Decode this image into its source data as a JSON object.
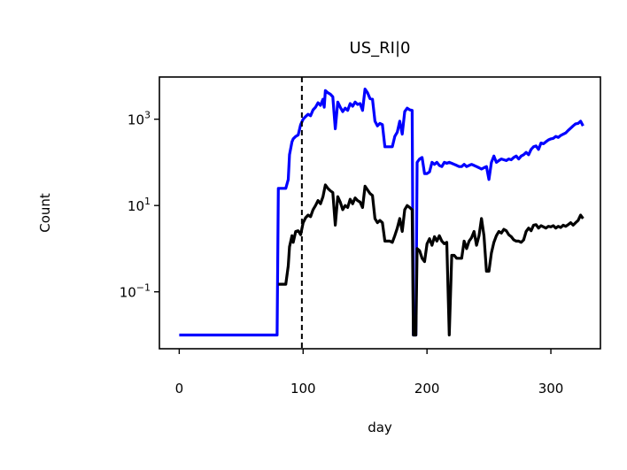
{
  "chart_data": {
    "type": "line",
    "title": "US_RI|0",
    "xlabel": "day",
    "ylabel": "Count",
    "xlim": [
      -16,
      340
    ],
    "ylim": [
      0.0048,
      9500
    ],
    "yscale": "log",
    "grid": false,
    "x_ticks": [
      {
        "value": 0,
        "label": "0"
      },
      {
        "value": 100,
        "label": "100"
      },
      {
        "value": 200,
        "label": "200"
      },
      {
        "value": 300,
        "label": "300"
      }
    ],
    "y_ticks": [
      {
        "value": 0.1,
        "base": "10",
        "exp": "−1"
      },
      {
        "value": 10,
        "base": "10",
        "exp": "1"
      },
      {
        "value": 1000,
        "base": "10",
        "exp": "3"
      }
    ],
    "vline": {
      "x": 99,
      "color": "#000000",
      "style": "dashed"
    },
    "series": [
      {
        "color": "#0000ff",
        "points": [
          [
            0,
            0.01
          ],
          [
            79,
            0.01
          ],
          [
            80,
            25
          ],
          [
            86,
            25
          ],
          [
            88,
            40
          ],
          [
            89,
            150
          ],
          [
            91,
            300
          ],
          [
            92,
            350
          ],
          [
            94,
            400
          ],
          [
            96,
            430
          ],
          [
            98,
            750
          ],
          [
            100,
            1000
          ],
          [
            102,
            1150
          ],
          [
            104,
            1300
          ],
          [
            106,
            1200
          ],
          [
            108,
            1650
          ],
          [
            110,
            1900
          ],
          [
            112,
            2400
          ],
          [
            114,
            2100
          ],
          [
            116,
            2900
          ],
          [
            117,
            1900
          ],
          [
            118,
            4600
          ],
          [
            120,
            4100
          ],
          [
            122,
            3800
          ],
          [
            124,
            3300
          ],
          [
            126,
            600
          ],
          [
            128,
            2500
          ],
          [
            130,
            1900
          ],
          [
            132,
            1500
          ],
          [
            134,
            1800
          ],
          [
            136,
            1600
          ],
          [
            138,
            2300
          ],
          [
            140,
            2000
          ],
          [
            142,
            2500
          ],
          [
            144,
            2200
          ],
          [
            146,
            2300
          ],
          [
            148,
            1600
          ],
          [
            150,
            5000
          ],
          [
            152,
            4100
          ],
          [
            154,
            3000
          ],
          [
            156,
            2900
          ],
          [
            158,
            900
          ],
          [
            160,
            700
          ],
          [
            162,
            800
          ],
          [
            164,
            750
          ],
          [
            166,
            230
          ],
          [
            170,
            230
          ],
          [
            172,
            230
          ],
          [
            174,
            400
          ],
          [
            176,
            500
          ],
          [
            178,
            900
          ],
          [
            180,
            450
          ],
          [
            182,
            1500
          ],
          [
            184,
            1800
          ],
          [
            186,
            1650
          ],
          [
            188,
            1600
          ],
          [
            189,
            0.01
          ],
          [
            191,
            0.01
          ],
          [
            192,
            100
          ],
          [
            194,
            120
          ],
          [
            196,
            130
          ],
          [
            198,
            55
          ],
          [
            200,
            55
          ],
          [
            202,
            60
          ],
          [
            204,
            100
          ],
          [
            206,
            90
          ],
          [
            208,
            100
          ],
          [
            210,
            85
          ],
          [
            212,
            80
          ],
          [
            214,
            100
          ],
          [
            216,
            95
          ],
          [
            218,
            100
          ],
          [
            220,
            95
          ],
          [
            222,
            90
          ],
          [
            224,
            85
          ],
          [
            226,
            80
          ],
          [
            228,
            80
          ],
          [
            230,
            90
          ],
          [
            232,
            80
          ],
          [
            234,
            85
          ],
          [
            236,
            90
          ],
          [
            238,
            85
          ],
          [
            240,
            80
          ],
          [
            242,
            75
          ],
          [
            244,
            70
          ],
          [
            246,
            75
          ],
          [
            248,
            80
          ],
          [
            250,
            40
          ],
          [
            252,
            100
          ],
          [
            254,
            140
          ],
          [
            256,
            100
          ],
          [
            258,
            110
          ],
          [
            260,
            120
          ],
          [
            262,
            115
          ],
          [
            264,
            110
          ],
          [
            266,
            120
          ],
          [
            268,
            115
          ],
          [
            270,
            130
          ],
          [
            272,
            140
          ],
          [
            274,
            120
          ],
          [
            276,
            140
          ],
          [
            278,
            150
          ],
          [
            280,
            170
          ],
          [
            282,
            150
          ],
          [
            284,
            200
          ],
          [
            286,
            230
          ],
          [
            288,
            240
          ],
          [
            290,
            200
          ],
          [
            292,
            280
          ],
          [
            294,
            270
          ],
          [
            296,
            300
          ],
          [
            298,
            330
          ],
          [
            300,
            350
          ],
          [
            302,
            360
          ],
          [
            304,
            400
          ],
          [
            306,
            380
          ],
          [
            308,
            420
          ],
          [
            310,
            450
          ],
          [
            312,
            480
          ],
          [
            314,
            550
          ],
          [
            316,
            620
          ],
          [
            318,
            700
          ],
          [
            320,
            780
          ],
          [
            322,
            800
          ],
          [
            324,
            900
          ],
          [
            326,
            700
          ]
        ]
      },
      {
        "color": "#000000",
        "points": [
          [
            80,
            0.15
          ],
          [
            86,
            0.15
          ],
          [
            88,
            0.4
          ],
          [
            89,
            1.1
          ],
          [
            91,
            2
          ],
          [
            92,
            1.4
          ],
          [
            94,
            2.5
          ],
          [
            96,
            2.6
          ],
          [
            98,
            2.1
          ],
          [
            100,
            4
          ],
          [
            102,
            5.2
          ],
          [
            104,
            6
          ],
          [
            106,
            5.5
          ],
          [
            108,
            8
          ],
          [
            110,
            10
          ],
          [
            112,
            13
          ],
          [
            114,
            11
          ],
          [
            116,
            16
          ],
          [
            118,
            30
          ],
          [
            120,
            25
          ],
          [
            122,
            22
          ],
          [
            124,
            20
          ],
          [
            126,
            3.5
          ],
          [
            128,
            16
          ],
          [
            130,
            12
          ],
          [
            132,
            8
          ],
          [
            134,
            10
          ],
          [
            136,
            9
          ],
          [
            138,
            14
          ],
          [
            140,
            11
          ],
          [
            142,
            15
          ],
          [
            144,
            13
          ],
          [
            146,
            12
          ],
          [
            148,
            9
          ],
          [
            150,
            28
          ],
          [
            152,
            23
          ],
          [
            154,
            19
          ],
          [
            156,
            17
          ],
          [
            158,
            5
          ],
          [
            160,
            4
          ],
          [
            162,
            4.5
          ],
          [
            164,
            4
          ],
          [
            166,
            1.5
          ],
          [
            170,
            1.5
          ],
          [
            172,
            1.4
          ],
          [
            174,
            2
          ],
          [
            176,
            3
          ],
          [
            178,
            5
          ],
          [
            180,
            2.5
          ],
          [
            182,
            8
          ],
          [
            184,
            10
          ],
          [
            186,
            9
          ],
          [
            188,
            8
          ],
          [
            189,
            0.01
          ],
          [
            191,
            0.01
          ],
          [
            192,
            1
          ],
          [
            194,
            0.9
          ],
          [
            196,
            0.6
          ],
          [
            198,
            0.5
          ],
          [
            200,
            1.3
          ],
          [
            202,
            1.7
          ],
          [
            204,
            1.2
          ],
          [
            206,
            1.9
          ],
          [
            208,
            1.5
          ],
          [
            210,
            2
          ],
          [
            212,
            1.5
          ],
          [
            214,
            1.3
          ],
          [
            216,
            1.4
          ],
          [
            218,
            0.01
          ],
          [
            220,
            0.7
          ],
          [
            222,
            0.7
          ],
          [
            224,
            0.6
          ],
          [
            226,
            0.6
          ],
          [
            228,
            0.6
          ],
          [
            230,
            1.5
          ],
          [
            232,
            1
          ],
          [
            234,
            1.5
          ],
          [
            236,
            1.8
          ],
          [
            238,
            2.5
          ],
          [
            240,
            1.2
          ],
          [
            242,
            2
          ],
          [
            244,
            5
          ],
          [
            246,
            2
          ],
          [
            248,
            0.3
          ],
          [
            250,
            0.3
          ],
          [
            252,
            0.8
          ],
          [
            254,
            1.4
          ],
          [
            256,
            2
          ],
          [
            258,
            2.5
          ],
          [
            260,
            2.3
          ],
          [
            262,
            2.8
          ],
          [
            264,
            2.6
          ],
          [
            266,
            2.1
          ],
          [
            268,
            1.9
          ],
          [
            270,
            1.6
          ],
          [
            272,
            1.5
          ],
          [
            274,
            1.5
          ],
          [
            276,
            1.4
          ],
          [
            278,
            1.6
          ],
          [
            280,
            2.5
          ],
          [
            282,
            3
          ],
          [
            284,
            2.6
          ],
          [
            286,
            3.5
          ],
          [
            288,
            3.6
          ],
          [
            290,
            3
          ],
          [
            292,
            3.4
          ],
          [
            294,
            3.2
          ],
          [
            296,
            3
          ],
          [
            298,
            3.3
          ],
          [
            300,
            3.2
          ],
          [
            302,
            3.4
          ],
          [
            304,
            3
          ],
          [
            306,
            3.3
          ],
          [
            308,
            3.1
          ],
          [
            310,
            3.5
          ],
          [
            312,
            3.3
          ],
          [
            314,
            3.6
          ],
          [
            316,
            4
          ],
          [
            318,
            3.5
          ],
          [
            320,
            4
          ],
          [
            322,
            4.5
          ],
          [
            324,
            6
          ],
          [
            326,
            5
          ]
        ]
      }
    ]
  }
}
